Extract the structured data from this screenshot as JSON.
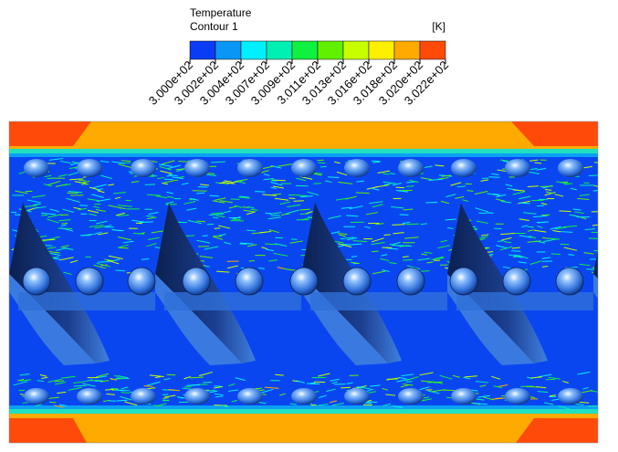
{
  "legend": {
    "title": "Temperature",
    "subtitle": "Contour 1",
    "unit": "[K]",
    "labels": [
      "3.000e+02",
      "3.002e+02",
      "3.004e+02",
      "3.007e+02",
      "3.009e+02",
      "3.011e+02",
      "3.013e+02",
      "3.016e+02",
      "3.018e+02",
      "3.020e+02",
      "3.022e+02"
    ],
    "colors": [
      "#0a3cf5",
      "#0a96f5",
      "#00f0ff",
      "#00f0b4",
      "#10f040",
      "#60f000",
      "#c8ff00",
      "#fff000",
      "#ffaa00",
      "#ff4a0a"
    ]
  }
}
